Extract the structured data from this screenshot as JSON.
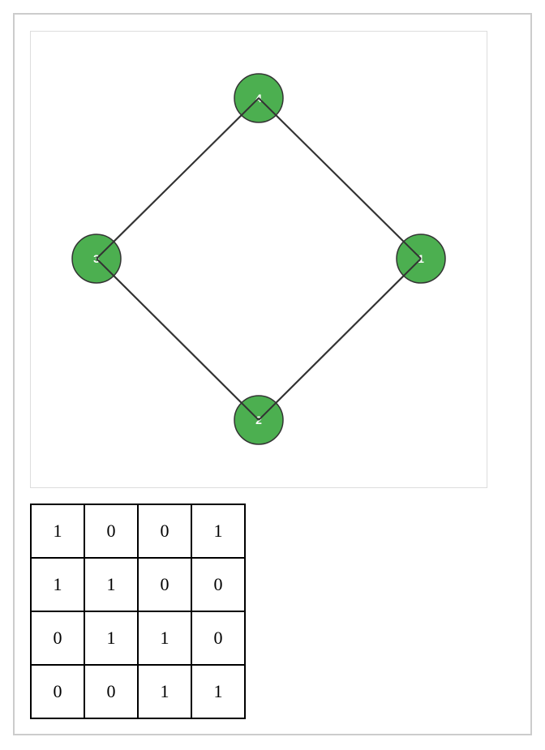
{
  "graph": {
    "node_color": "#4caf50",
    "node_stroke": "#333333",
    "edge_color": "#333333",
    "nodes": [
      {
        "id": "4",
        "label": "4"
      },
      {
        "id": "1",
        "label": "1"
      },
      {
        "id": "2",
        "label": "2"
      },
      {
        "id": "3",
        "label": "3"
      }
    ],
    "edges": [
      {
        "from": "4",
        "to": "1"
      },
      {
        "from": "1",
        "to": "2"
      },
      {
        "from": "2",
        "to": "3"
      },
      {
        "from": "3",
        "to": "4"
      }
    ]
  },
  "matrix": {
    "rows": [
      [
        "1",
        "0",
        "0",
        "1"
      ],
      [
        "1",
        "1",
        "0",
        "0"
      ],
      [
        "0",
        "1",
        "1",
        "0"
      ],
      [
        "0",
        "0",
        "1",
        "1"
      ]
    ]
  }
}
